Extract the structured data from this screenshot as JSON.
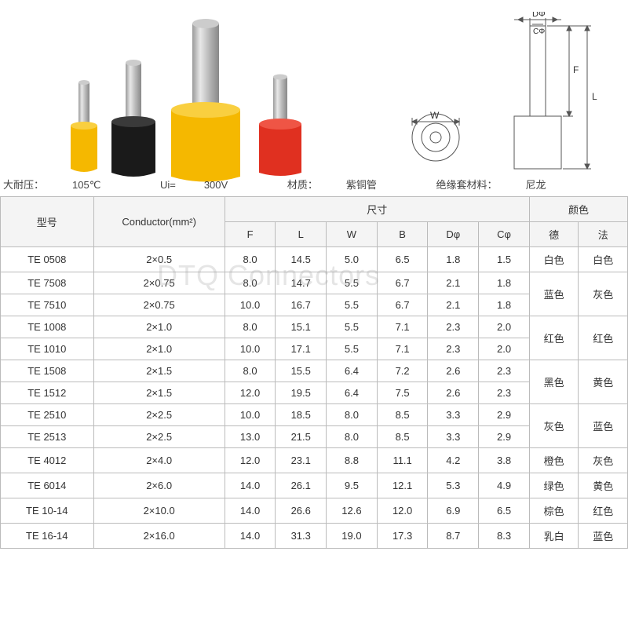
{
  "watermark": "DTQ Connectors",
  "specs": {
    "temp_label": "大耐压：",
    "temp_value": "105℃",
    "voltage_label": "Ui=",
    "voltage_value": "300V",
    "material_label": "材质：",
    "material_value": "紫铜管",
    "insulation_label": "绝缘套材料：",
    "insulation_value": "尼龙"
  },
  "ferrule_colors": {
    "yellow": "#f5b800",
    "black": "#1a1a1a",
    "red": "#e03020",
    "metal_light": "#d8d8d8",
    "metal_dark": "#9a9a9a"
  },
  "diagram_labels": {
    "D": "DΦ",
    "C": "CΦ",
    "W": "W",
    "F": "F",
    "L": "L"
  },
  "table": {
    "headers": {
      "model": "型号",
      "conductor": "Conductor(mm²)",
      "dimensions": "尺寸",
      "color": "颜色",
      "F": "F",
      "L": "L",
      "W": "W",
      "B": "B",
      "Dphi": "Dφ",
      "Cphi": "Cφ",
      "de": "德",
      "fa": "法"
    },
    "rows": [
      {
        "model": "TE 0508",
        "conductor": "2×0.5",
        "F": "8.0",
        "L": "14.5",
        "W": "5.0",
        "B": "6.5",
        "D": "1.8",
        "C": "1.5"
      },
      {
        "model": "TE 7508",
        "conductor": "2×0.75",
        "F": "8.0",
        "L": "14.7",
        "W": "5.5",
        "B": "6.7",
        "D": "2.1",
        "C": "1.8"
      },
      {
        "model": "TE 7510",
        "conductor": "2×0.75",
        "F": "10.0",
        "L": "16.7",
        "W": "5.5",
        "B": "6.7",
        "D": "2.1",
        "C": "1.8"
      },
      {
        "model": "TE 1008",
        "conductor": "2×1.0",
        "F": "8.0",
        "L": "15.1",
        "W": "5.5",
        "B": "7.1",
        "D": "2.3",
        "C": "2.0"
      },
      {
        "model": "TE 1010",
        "conductor": "2×1.0",
        "F": "10.0",
        "L": "17.1",
        "W": "5.5",
        "B": "7.1",
        "D": "2.3",
        "C": "2.0"
      },
      {
        "model": "TE 1508",
        "conductor": "2×1.5",
        "F": "8.0",
        "L": "15.5",
        "W": "6.4",
        "B": "7.2",
        "D": "2.6",
        "C": "2.3"
      },
      {
        "model": "TE 1512",
        "conductor": "2×1.5",
        "F": "12.0",
        "L": "19.5",
        "W": "6.4",
        "B": "7.5",
        "D": "2.6",
        "C": "2.3"
      },
      {
        "model": "TE 2510",
        "conductor": "2×2.5",
        "F": "10.0",
        "L": "18.5",
        "W": "8.0",
        "B": "8.5",
        "D": "3.3",
        "C": "2.9"
      },
      {
        "model": "TE 2513",
        "conductor": "2×2.5",
        "F": "13.0",
        "L": "21.5",
        "W": "8.0",
        "B": "8.5",
        "D": "3.3",
        "C": "2.9"
      },
      {
        "model": "TE 4012",
        "conductor": "2×4.0",
        "F": "12.0",
        "L": "23.1",
        "W": "8.8",
        "B": "11.1",
        "D": "4.2",
        "C": "3.8"
      },
      {
        "model": "TE 6014",
        "conductor": "2×6.0",
        "F": "14.0",
        "L": "26.1",
        "W": "9.5",
        "B": "12.1",
        "D": "5.3",
        "C": "4.9"
      },
      {
        "model": "TE 10-14",
        "conductor": "2×10.0",
        "F": "14.0",
        "L": "26.6",
        "W": "12.6",
        "B": "12.0",
        "D": "6.9",
        "C": "6.5"
      },
      {
        "model": "TE 16-14",
        "conductor": "2×16.0",
        "F": "14.0",
        "L": "31.3",
        "W": "19.0",
        "B": "17.3",
        "D": "8.7",
        "C": "8.3"
      }
    ],
    "color_groups": [
      {
        "span": 1,
        "de": "白色",
        "fa": "白色"
      },
      {
        "span": 2,
        "de": "蓝色",
        "fa": "灰色"
      },
      {
        "span": 2,
        "de": "红色",
        "fa": "红色"
      },
      {
        "span": 2,
        "de": "黑色",
        "fa": "黄色"
      },
      {
        "span": 2,
        "de": "灰色",
        "fa": "蓝色"
      },
      {
        "span": 1,
        "de": "橙色",
        "fa": "灰色"
      },
      {
        "span": 1,
        "de": "绿色",
        "fa": "黄色"
      },
      {
        "span": 1,
        "de": "棕色",
        "fa": "红色"
      },
      {
        "span": 1,
        "de": "乳白",
        "fa": "蓝色"
      }
    ]
  }
}
